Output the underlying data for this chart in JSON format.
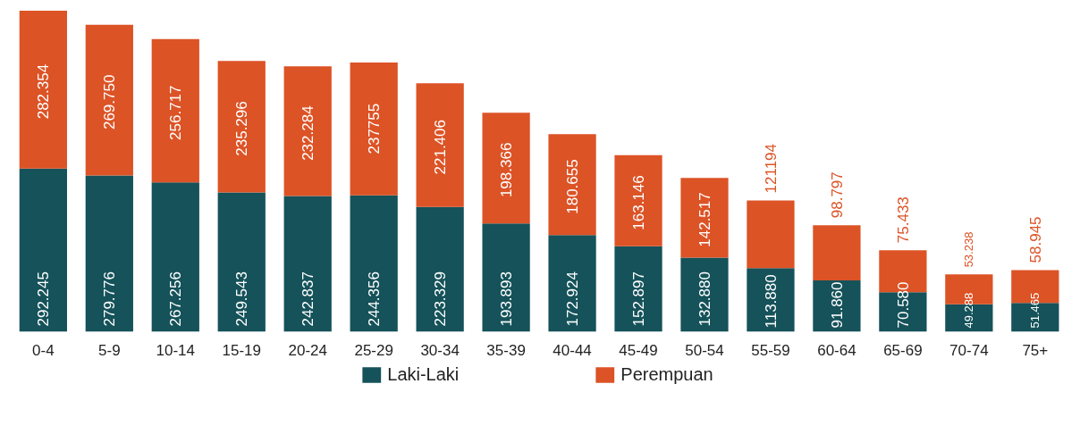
{
  "chart_data": {
    "type": "bar",
    "stacked": true,
    "categories": [
      "0-4",
      "5-9",
      "10-14",
      "15-19",
      "20-24",
      "25-29",
      "30-34",
      "35-39",
      "40-44",
      "45-49",
      "50-54",
      "55-59",
      "60-64",
      "65-69",
      "70-74",
      "75+"
    ],
    "series": [
      {
        "name": "Laki-Laki",
        "color": "#15525a",
        "values": [
          292245,
          279776,
          267256,
          249543,
          242837,
          244356,
          223329,
          193893,
          172924,
          152897,
          132880,
          113880,
          91860,
          70580,
          49288,
          51465
        ],
        "value_labels": [
          "292.245",
          "279.776",
          "267.256",
          "249.543",
          "242.837",
          "244.356",
          "223.329",
          "193.893",
          "172.924",
          "152.897",
          "132.880",
          "113.880",
          "91.860",
          "70.580",
          "49.288",
          "51.465"
        ]
      },
      {
        "name": "Perempuan",
        "color": "#dc5326",
        "values": [
          282354,
          269750,
          256717,
          235296,
          232284,
          237755,
          221406,
          198366,
          180655,
          163146,
          142517,
          121194,
          98797,
          75433,
          53238,
          58945
        ],
        "value_labels": [
          "282.354",
          "269.750",
          "256.717",
          "235.296",
          "232.284",
          "237755",
          "221.406",
          "198.366",
          "180.655",
          "163.146",
          "142.517",
          "121194",
          "98.797",
          "75.433",
          "53.238",
          "58.945"
        ]
      }
    ],
    "grid": false,
    "legend": "bottom",
    "tick_labels": "x"
  }
}
